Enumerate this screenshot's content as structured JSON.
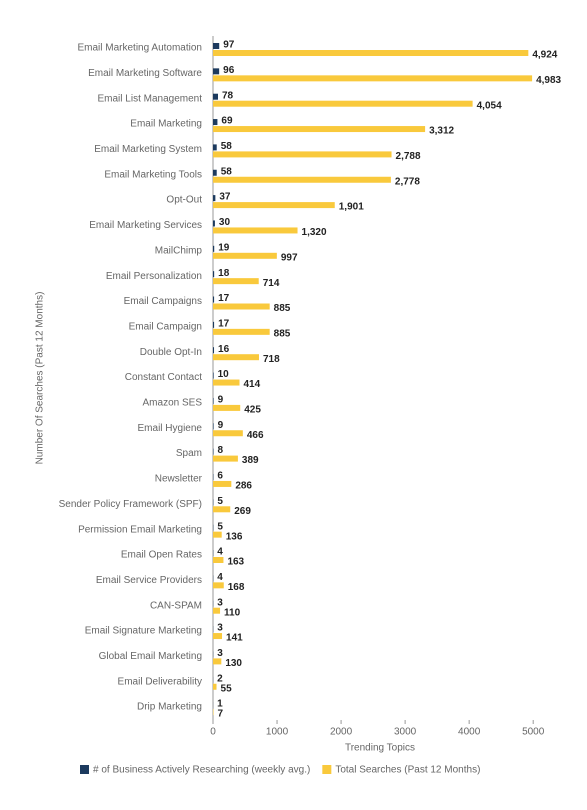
{
  "chart_data": {
    "type": "hbar",
    "xlabel": "Trending Topics",
    "ylabel": "Number Of Searches (Past 12 Months)",
    "categories": [
      "Email Marketing Automation",
      "Email Marketing Software",
      "Email List Management",
      "Email Marketing",
      "Email Marketing System",
      "Email Marketing Tools",
      "Opt-Out",
      "Email Marketing Services",
      "MailChimp",
      "Email Personalization",
      "Email Campaigns",
      "Email Campaign",
      "Double Opt-In",
      "Constant Contact",
      "Amazon SES",
      "Email Hygiene",
      "Spam",
      "Newsletter",
      "Sender Policy Framework (SPF)",
      "Permission Email Marketing",
      "Email Open Rates",
      "Email Service Providers",
      "CAN-SPAM",
      "Email Signature Marketing",
      "Global Email Marketing",
      "Email Deliverability",
      "Drip Marketing"
    ],
    "series": [
      {
        "name": "# of Business Actively Researching (weekly avg.)",
        "color": "#1c3a5e",
        "values": [
          97,
          96,
          78,
          69,
          58,
          58,
          37,
          30,
          19,
          18,
          17,
          17,
          16,
          10,
          9,
          9,
          8,
          6,
          5,
          5,
          4,
          4,
          3,
          3,
          3,
          2,
          1
        ]
      },
      {
        "name": "Total Searches (Past 12 Months)",
        "color": "#f9c93c",
        "values": [
          4924,
          4983,
          4054,
          3312,
          2788,
          2778,
          1901,
          1320,
          997,
          714,
          885,
          885,
          718,
          414,
          425,
          466,
          389,
          286,
          269,
          136,
          163,
          168,
          110,
          141,
          130,
          55,
          7
        ],
        "value_labels": [
          "4,924",
          "4,983",
          "4,054",
          "3,312",
          "2,788",
          "2,778",
          "1,901",
          "1,320",
          "997",
          "714",
          "885",
          "885",
          "718",
          "414",
          "425",
          "466",
          "389",
          "286",
          "269",
          "136",
          "163",
          "168",
          "110",
          "141",
          "130",
          "55",
          "7"
        ]
      }
    ],
    "xlim": [
      0,
      5200
    ],
    "xticks": [
      0,
      1000,
      2000,
      3000,
      4000,
      5000
    ],
    "grid": false
  }
}
